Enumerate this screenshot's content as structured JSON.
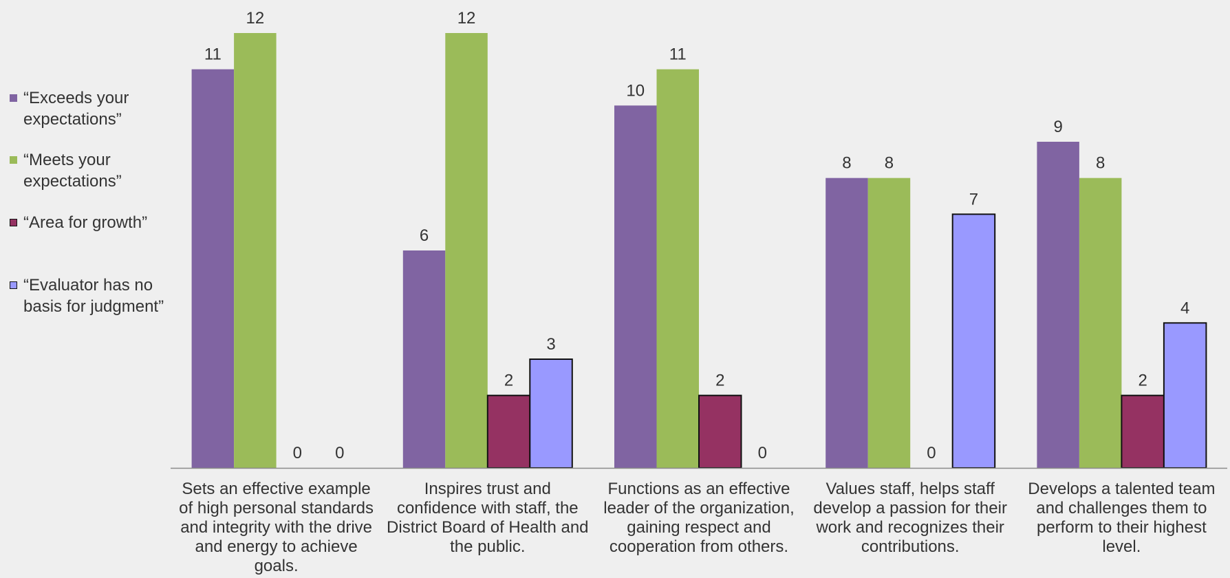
{
  "chart_data": {
    "type": "bar",
    "categories": [
      "Sets an effective example of high personal standards and integrity with the drive and energy to achieve goals.",
      "Inspires trust and confidence with staff, the District Board of Health and the public.",
      "Functions as an effective leader of the organization, gaining respect and cooperation from others.",
      "Values staff, helps staff develop a passion for their work and recognizes their contributions.",
      "Develops a talented team and challenges them to perform to their highest level."
    ],
    "series": [
      {
        "name": "“Exceeds your expectations”",
        "color": "#8064a2",
        "outlined": false,
        "values": [
          11,
          6,
          10,
          8,
          9
        ]
      },
      {
        "name": "“Meets your expectations”",
        "color": "#9bbb59",
        "outlined": false,
        "values": [
          12,
          12,
          11,
          8,
          8
        ]
      },
      {
        "name": "“Area for growth”",
        "color": "#953262",
        "outlined": true,
        "values": [
          0,
          2,
          2,
          0,
          2
        ]
      },
      {
        "name": "“Evaluator has no basis for judgment”",
        "color": "#9999ff",
        "outlined": true,
        "values": [
          0,
          3,
          0,
          7,
          4
        ]
      }
    ],
    "ylim": [
      0,
      12
    ],
    "grid": false,
    "legend_position": "left",
    "data_labels": true
  }
}
